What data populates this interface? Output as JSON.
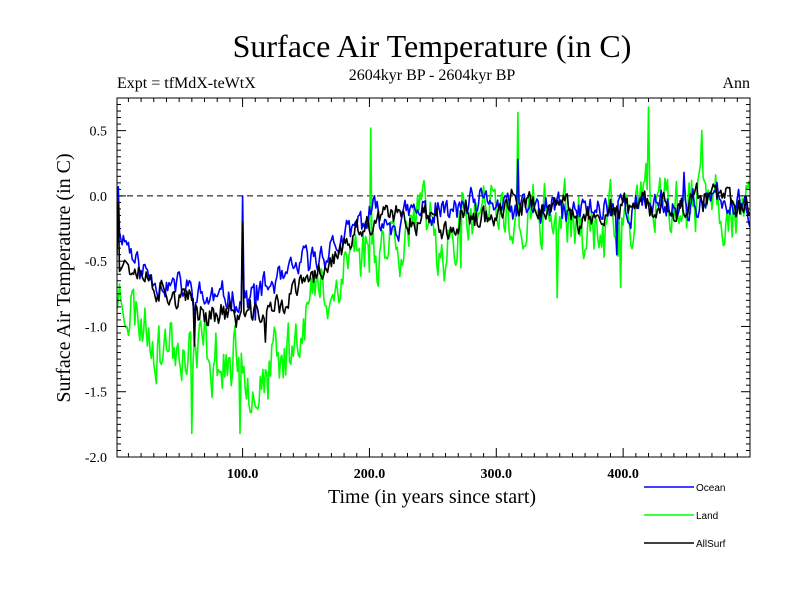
{
  "chart_data": {
    "type": "line",
    "title": "Surface Air Temperature (in C)",
    "subtitle": "2604kyr BP - 2604kyr BP",
    "left_label": "Expt = tfMdX-teWtX",
    "right_label": "Ann",
    "xlabel": "Time (in years since start)",
    "ylabel": "Surface Air Temperature (in C)",
    "xlim": [
      1,
      500
    ],
    "ylim": [
      -2.0,
      0.75
    ],
    "x_ticks": [
      100,
      200,
      300,
      400
    ],
    "x_tick_labels": [
      "100.0",
      "200.0",
      "300.0",
      "400.0"
    ],
    "y_ticks": [
      -2.0,
      -1.5,
      -1.0,
      -0.5,
      0.0,
      0.5
    ],
    "y_tick_labels": [
      "-2.0",
      "-1.5",
      "-1.0",
      "-0.5",
      "0.0",
      "0.5"
    ],
    "reference_line": 0.0,
    "legend_position": "bottom-right",
    "series": [
      {
        "name": "Ocean",
        "color": "#0000ff",
        "anchors": [
          [
            1,
            -0.3
          ],
          [
            5,
            -0.25
          ],
          [
            20,
            -0.55
          ],
          [
            40,
            -0.65
          ],
          [
            60,
            -0.72
          ],
          [
            80,
            -0.78
          ],
          [
            100,
            -0.75
          ],
          [
            120,
            -0.72
          ],
          [
            140,
            -0.6
          ],
          [
            160,
            -0.45
          ],
          [
            180,
            -0.35
          ],
          [
            200,
            -0.18
          ],
          [
            230,
            -0.12
          ],
          [
            260,
            -0.15
          ],
          [
            300,
            -0.1
          ],
          [
            330,
            -0.12
          ],
          [
            360,
            -0.12
          ],
          [
            400,
            -0.08
          ],
          [
            430,
            -0.06
          ],
          [
            460,
            -0.06
          ],
          [
            500,
            -0.08
          ]
        ],
        "noise": 0.09,
        "seed": 11,
        "spikes": [
          [
            2,
            0.07
          ],
          [
            100,
            0.0
          ],
          [
            317,
            0.28
          ],
          [
            448,
            0.18
          ],
          [
            395,
            -0.45
          ],
          [
            110,
            -0.95
          ]
        ]
      },
      {
        "name": "Land",
        "color": "#00ff00",
        "anchors": [
          [
            1,
            -0.75
          ],
          [
            10,
            -0.85
          ],
          [
            30,
            -1.05
          ],
          [
            50,
            -1.25
          ],
          [
            70,
            -1.3
          ],
          [
            90,
            -1.3
          ],
          [
            110,
            -1.35
          ],
          [
            130,
            -1.2
          ],
          [
            150,
            -0.9
          ],
          [
            170,
            -0.65
          ],
          [
            190,
            -0.45
          ],
          [
            210,
            -0.28
          ],
          [
            240,
            -0.25
          ],
          [
            270,
            -0.25
          ],
          [
            300,
            -0.18
          ],
          [
            330,
            -0.2
          ],
          [
            360,
            -0.22
          ],
          [
            390,
            -0.15
          ],
          [
            420,
            -0.15
          ],
          [
            460,
            -0.1
          ],
          [
            500,
            -0.12
          ]
        ],
        "noise": 0.2,
        "seed": 23,
        "spikes": [
          [
            60,
            -1.82
          ],
          [
            98,
            -1.82
          ],
          [
            201,
            0.52
          ],
          [
            317,
            0.64
          ],
          [
            420,
            0.68
          ],
          [
            348,
            -0.78
          ],
          [
            462,
            0.5
          ],
          [
            497,
            0.08
          ],
          [
            398,
            -0.7
          ],
          [
            272,
            -0.55
          ]
        ]
      },
      {
        "name": "AllSurf",
        "color": "#000000",
        "anchors": [
          [
            1,
            -0.42
          ],
          [
            10,
            -0.5
          ],
          [
            30,
            -0.7
          ],
          [
            50,
            -0.82
          ],
          [
            70,
            -0.9
          ],
          [
            90,
            -0.9
          ],
          [
            110,
            -0.92
          ],
          [
            130,
            -0.82
          ],
          [
            150,
            -0.65
          ],
          [
            170,
            -0.5
          ],
          [
            190,
            -0.35
          ],
          [
            210,
            -0.2
          ],
          [
            240,
            -0.15
          ],
          [
            270,
            -0.17
          ],
          [
            300,
            -0.12
          ],
          [
            330,
            -0.14
          ],
          [
            360,
            -0.15
          ],
          [
            400,
            -0.1
          ],
          [
            440,
            -0.08
          ],
          [
            470,
            -0.07
          ],
          [
            500,
            -0.09
          ]
        ],
        "noise": 0.08,
        "seed": 37,
        "spikes": [
          [
            2,
            -0.05
          ],
          [
            100,
            -0.2
          ],
          [
            62,
            -1.15
          ],
          [
            118,
            -1.12
          ]
        ]
      }
    ]
  }
}
